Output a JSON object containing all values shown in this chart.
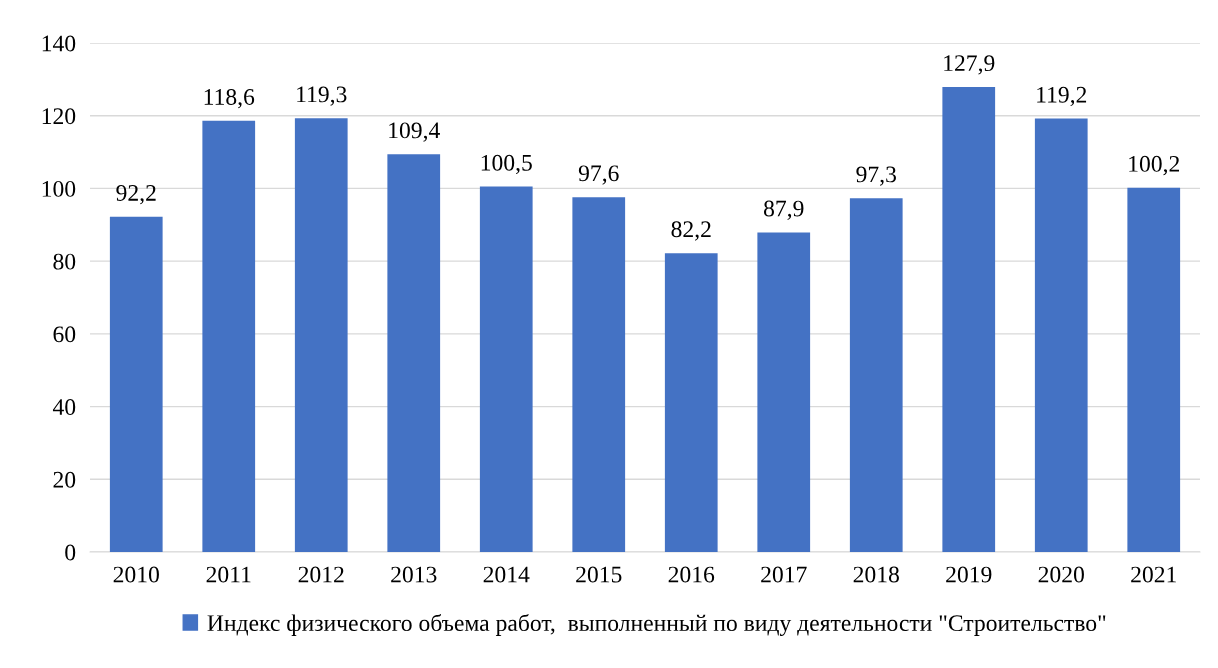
{
  "chart_data": {
    "type": "bar",
    "categories": [
      "2010",
      "2011",
      "2012",
      "2013",
      "2014",
      "2015",
      "2016",
      "2017",
      "2018",
      "2019",
      "2020",
      "2021"
    ],
    "series": [
      {
        "name": "Индекс физического объема работ,  выполненный по виду деятельности \"Строительство\"",
        "color": "#4472c4",
        "values": [
          92.2,
          118.6,
          119.3,
          109.4,
          100.5,
          97.6,
          82.2,
          87.9,
          97.3,
          127.9,
          119.2,
          100.2
        ],
        "value_labels": [
          "92,2",
          "118,6",
          "119,3",
          "109,4",
          "100,5",
          "97,6",
          "82,2",
          "87,9",
          "97,3",
          "127,9",
          "119,2",
          "100,2"
        ]
      }
    ],
    "ylim": [
      0,
      140
    ],
    "yticks": [
      0,
      20,
      40,
      60,
      80,
      100,
      120,
      140
    ],
    "grid": "y",
    "legend": "bottom"
  }
}
